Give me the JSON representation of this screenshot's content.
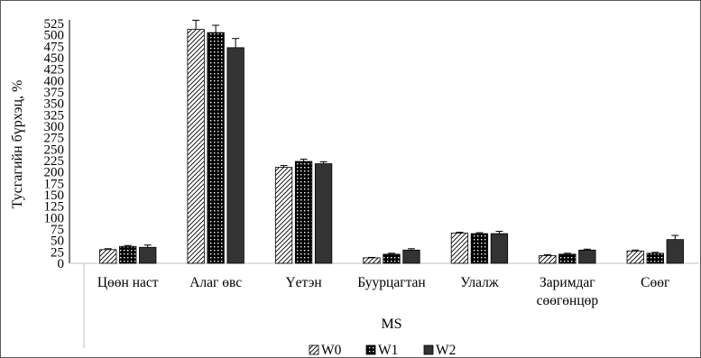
{
  "chart_data": {
    "type": "bar",
    "title": "",
    "xlabel": "MS",
    "ylabel": "Тусгагийн бүрхэц, %",
    "ylim": [
      0,
      525
    ],
    "ytick_step": 25,
    "ytick_labels": [
      "0",
      "25",
      "50",
      "75",
      "100",
      "125",
      "150",
      "175",
      "200",
      "225",
      "250",
      "275",
      "300",
      "325",
      "350",
      "375",
      "400",
      "425",
      "450",
      "475",
      "500",
      "525"
    ],
    "categories": [
      [
        "Цөөн наст"
      ],
      [
        "Алаг өвс"
      ],
      [
        "Үетэн"
      ],
      [
        "Буурцагтан"
      ],
      [
        "Улалж"
      ],
      [
        "Заримдаг",
        "сөөгөнцөр"
      ],
      [
        "Сөөг"
      ]
    ],
    "series": [
      {
        "name": "W0",
        "pattern": "diagonal-hatch",
        "values": [
          30,
          512,
          210,
          12,
          66,
          17,
          27
        ],
        "errors": [
          2,
          20,
          4,
          1,
          2,
          2,
          2
        ]
      },
      {
        "name": "W1",
        "pattern": "dotted",
        "values": [
          37,
          505,
          223,
          20,
          65,
          20,
          22
        ],
        "errors": [
          2,
          16,
          5,
          2,
          2,
          2,
          2
        ]
      },
      {
        "name": "W2",
        "pattern": "solid",
        "values": [
          35,
          472,
          218,
          29,
          65,
          29,
          52
        ],
        "errors": [
          5,
          20,
          4,
          3,
          5,
          2,
          9
        ]
      }
    ],
    "legend_position": "bottom",
    "grid": false,
    "colors": {
      "bar_stroke": "#000000",
      "solid_fill": "#333333",
      "axis": "#bfbfbf",
      "border": "#595959"
    }
  }
}
